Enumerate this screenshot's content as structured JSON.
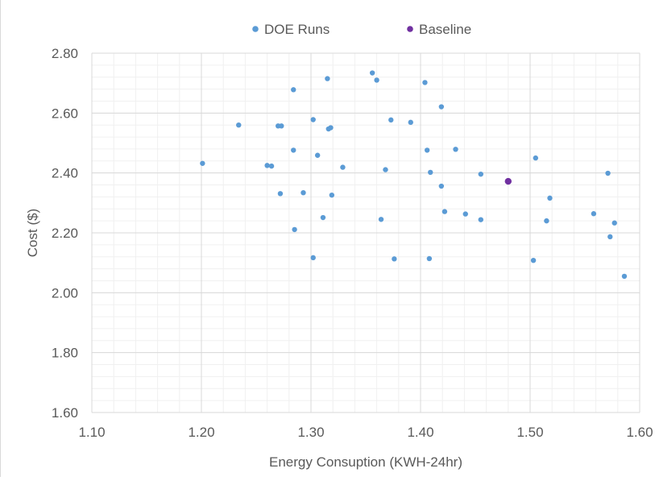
{
  "chart_data": {
    "type": "scatter",
    "xlabel": "Energy Consuption (KWH-24hr)",
    "ylabel": "Cost ($)",
    "xlim": [
      1.1,
      1.6
    ],
    "ylim": [
      1.6,
      2.8
    ],
    "x_ticks": [
      "1.10",
      "1.20",
      "1.30",
      "1.40",
      "1.50",
      "1.60"
    ],
    "y_ticks": [
      "1.60",
      "1.80",
      "2.00",
      "2.20",
      "2.40",
      "2.60",
      "2.80"
    ],
    "grid": true,
    "legend": "top-center",
    "series": [
      {
        "name": "DOE Runs",
        "color": "#5b9bd5",
        "points": [
          [
            1.201,
            2.432
          ],
          [
            1.234,
            2.56
          ],
          [
            1.26,
            2.425
          ],
          [
            1.264,
            2.423
          ],
          [
            1.27,
            2.557
          ],
          [
            1.273,
            2.557
          ],
          [
            1.272,
            2.331
          ],
          [
            1.284,
            2.678
          ],
          [
            1.284,
            2.476
          ],
          [
            1.285,
            2.211
          ],
          [
            1.293,
            2.334
          ],
          [
            1.302,
            2.578
          ],
          [
            1.302,
            2.117
          ],
          [
            1.306,
            2.459
          ],
          [
            1.311,
            2.251
          ],
          [
            1.315,
            2.715
          ],
          [
            1.316,
            2.547
          ],
          [
            1.318,
            2.551
          ],
          [
            1.319,
            2.326
          ],
          [
            1.329,
            2.419
          ],
          [
            1.356,
            2.734
          ],
          [
            1.36,
            2.71
          ],
          [
            1.364,
            2.245
          ],
          [
            1.368,
            2.411
          ],
          [
            1.373,
            2.577
          ],
          [
            1.376,
            2.113
          ],
          [
            1.391,
            2.569
          ],
          [
            1.404,
            2.702
          ],
          [
            1.406,
            2.476
          ],
          [
            1.408,
            2.114
          ],
          [
            1.409,
            2.402
          ],
          [
            1.419,
            2.621
          ],
          [
            1.419,
            2.356
          ],
          [
            1.422,
            2.271
          ],
          [
            1.432,
            2.479
          ],
          [
            1.441,
            2.263
          ],
          [
            1.455,
            2.396
          ],
          [
            1.455,
            2.244
          ],
          [
            1.503,
            2.108
          ],
          [
            1.505,
            2.45
          ],
          [
            1.515,
            2.24
          ],
          [
            1.518,
            2.316
          ],
          [
            1.558,
            2.264
          ],
          [
            1.571,
            2.399
          ],
          [
            1.573,
            2.187
          ],
          [
            1.577,
            2.233
          ],
          [
            1.586,
            2.055
          ]
        ]
      },
      {
        "name": "Baseline",
        "color": "#7030a0",
        "points": [
          [
            1.48,
            2.372
          ]
        ]
      }
    ]
  }
}
